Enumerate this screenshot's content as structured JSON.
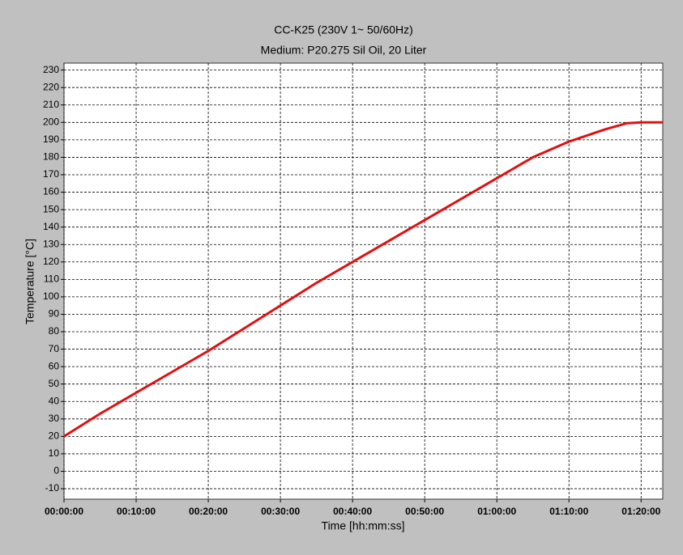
{
  "chart_data": {
    "type": "line",
    "title": "CC-K25 (230V 1~ 50/60Hz)",
    "subtitle": "Medium: P20.275 Sil Oil, 20 Liter",
    "x_label": "Time [hh:mm:ss]",
    "y_label": "Temperature [°C]",
    "x": [
      0,
      5,
      10,
      15,
      20,
      25,
      30,
      35,
      40,
      45,
      50,
      55,
      60,
      65,
      70,
      75,
      78,
      80,
      83
    ],
    "values": [
      20,
      33,
      45,
      57,
      69,
      82,
      95,
      108,
      120,
      132,
      144,
      156,
      168,
      180,
      189,
      196,
      199.5,
      200,
      200
    ],
    "color": "#e01010",
    "xlim": [
      0,
      83
    ],
    "xticks": [
      {
        "value": 0,
        "label": "00:00:00"
      },
      {
        "value": 10,
        "label": "00:10:00"
      },
      {
        "value": 20,
        "label": "00:20:00"
      },
      {
        "value": 30,
        "label": "00:30:00"
      },
      {
        "value": 40,
        "label": "00:40:00"
      },
      {
        "value": 50,
        "label": "00:50:00"
      },
      {
        "value": 60,
        "label": "01:00:00"
      },
      {
        "value": 70,
        "label": "01:10:00"
      },
      {
        "value": 80,
        "label": "01:20:00"
      }
    ],
    "ylim": [
      -16,
      234
    ],
    "yticks": [
      -10,
      0,
      10,
      20,
      30,
      40,
      50,
      60,
      70,
      80,
      90,
      100,
      110,
      120,
      130,
      140,
      150,
      160,
      170,
      180,
      190,
      200,
      210,
      220,
      230
    ],
    "grid": true
  }
}
